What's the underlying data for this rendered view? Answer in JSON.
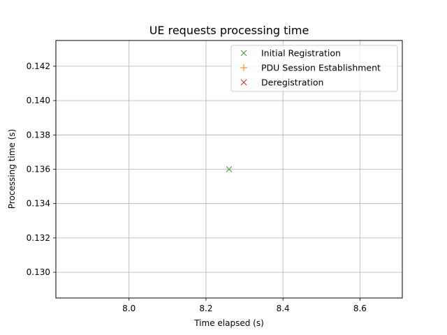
{
  "chart_data": {
    "type": "scatter",
    "title": "UE requests processing time",
    "xlabel": "Time elapsed (s)",
    "ylabel": "Processing time (s)",
    "xlim": [
      7.81,
      8.71
    ],
    "ylim": [
      0.1285,
      0.1435
    ],
    "xticks": [
      8.0,
      8.2,
      8.4,
      8.6
    ],
    "xtick_labels": [
      "8.0",
      "8.2",
      "8.4",
      "8.6"
    ],
    "yticks": [
      0.13,
      0.132,
      0.134,
      0.136,
      0.138,
      0.14,
      0.142
    ],
    "ytick_labels": [
      "0.130",
      "0.132",
      "0.134",
      "0.136",
      "0.138",
      "0.140",
      "0.142"
    ],
    "grid": true,
    "legend_position": "top-right",
    "series": [
      {
        "name": "Initial Registration",
        "marker": "x",
        "color": "#2ca02c",
        "points": [
          [
            8.26,
            0.136
          ]
        ]
      },
      {
        "name": "PDU Session Establishment",
        "marker": "+",
        "color": "#ff7f0e",
        "points": []
      },
      {
        "name": "Deregistration",
        "marker": "x",
        "color": "#d62728",
        "points": []
      }
    ]
  }
}
